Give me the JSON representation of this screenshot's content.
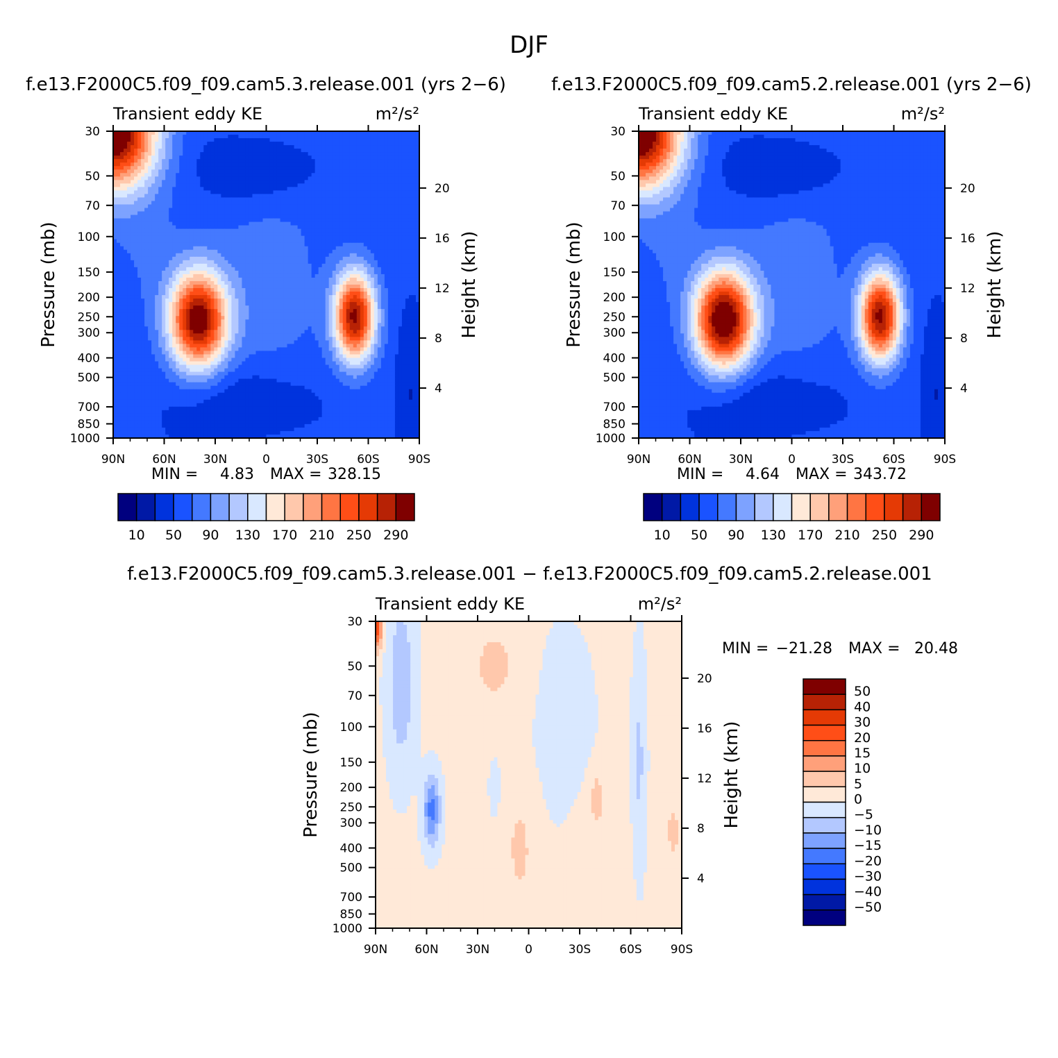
{
  "figure": {
    "title": "DJF"
  },
  "colors": {
    "abs": [
      "#00007f",
      "#0019a6",
      "#0033dd",
      "#1a53ff",
      "#4479ff",
      "#7da2ff",
      "#b3c8ff",
      "#d9e8ff",
      "#ffe9d8",
      "#ffc8ac",
      "#ffa07a",
      "#ff7543",
      "#ff4e17",
      "#e53a05",
      "#b72205",
      "#7f0000"
    ],
    "diff": [
      "#00007f",
      "#0019a6",
      "#0033dd",
      "#1a53ff",
      "#4479ff",
      "#7da2ff",
      "#b3c8ff",
      "#d9e8ff",
      "#ffe9d8",
      "#ffc8ac",
      "#ffa07a",
      "#ff7543",
      "#ff4e17",
      "#e53a05",
      "#b72205",
      "#7f0000"
    ]
  },
  "chart_data": [
    {
      "type": "heatmap",
      "title": "f.e13.F2000C5.f09_f09.cam5.3.release.001  (yrs 2-6)",
      "left_label": "Transient eddy KE",
      "right_label": "m²/s²",
      "ylabel": "Pressure (mb)",
      "y2label": "Height (km)",
      "x_ticks": [
        "90N",
        "60N",
        "30N",
        "0",
        "30S",
        "60S",
        "90S"
      ],
      "x": [
        90,
        60,
        30,
        0,
        -30,
        -60,
        -90
      ],
      "y_ticks": [
        30,
        50,
        70,
        100,
        150,
        200,
        250,
        300,
        400,
        500,
        700,
        850,
        1000
      ],
      "y2_ticks": [
        20,
        16,
        12,
        8,
        4
      ],
      "ylim": [
        1000,
        30
      ],
      "stats": {
        "min_label": "MIN =",
        "min": "4.83",
        "max_label": "MAX =",
        "max": "328.15"
      },
      "contour_levels": [
        10,
        30,
        50,
        70,
        90,
        110,
        130,
        150,
        170,
        190,
        210,
        230,
        250,
        270,
        290
      ],
      "colorbar_labels": [
        "10",
        "50",
        "90",
        "130",
        "170",
        "210",
        "250",
        "290"
      ],
      "features": [
        {
          "name": "nh-jet-core",
          "lat": 40,
          "p": 250,
          "value": 328
        },
        {
          "name": "sh-jet-core",
          "lat": -52,
          "p": 250,
          "value": 300
        },
        {
          "name": "nh-polar-stratosphere",
          "lat": 85,
          "p": 30,
          "value": 300
        }
      ]
    },
    {
      "type": "heatmap",
      "title": "f.e13.F2000C5.f09_f09.cam5.2.release.001  (yrs 2-6)",
      "left_label": "Transient eddy KE",
      "right_label": "m²/s²",
      "ylabel": "Pressure (mb)",
      "y2label": "Height (km)",
      "x_ticks": [
        "90N",
        "60N",
        "30N",
        "0",
        "30S",
        "60S",
        "90S"
      ],
      "x": [
        90,
        60,
        30,
        0,
        -30,
        -60,
        -90
      ],
      "y_ticks": [
        30,
        50,
        70,
        100,
        150,
        200,
        250,
        300,
        400,
        500,
        700,
        850,
        1000
      ],
      "y2_ticks": [
        20,
        16,
        12,
        8,
        4
      ],
      "ylim": [
        1000,
        30
      ],
      "stats": {
        "min_label": "MIN =",
        "min": "4.64",
        "max_label": "MAX =",
        "max": "343.72"
      },
      "contour_levels": [
        10,
        30,
        50,
        70,
        90,
        110,
        130,
        150,
        170,
        190,
        210,
        230,
        250,
        270,
        290
      ],
      "colorbar_labels": [
        "10",
        "50",
        "90",
        "130",
        "170",
        "210",
        "250",
        "290"
      ],
      "features": [
        {
          "name": "nh-jet-core",
          "lat": 42,
          "p": 250,
          "value": 343
        },
        {
          "name": "sh-jet-core",
          "lat": -52,
          "p": 250,
          "value": 300
        },
        {
          "name": "nh-polar-stratosphere",
          "lat": 85,
          "p": 30,
          "value": 320
        }
      ]
    },
    {
      "type": "heatmap",
      "title": "f.e13.F2000C5.f09_f09.cam5.3.release.001 - f.e13.F2000C5.f09_f09.cam5.2.release.001",
      "left_label": "Transient eddy KE",
      "right_label": "m²/s²",
      "ylabel": "Pressure (mb)",
      "y2label": "Height (km)",
      "x_ticks": [
        "90N",
        "60N",
        "30N",
        "0",
        "30S",
        "60S",
        "90S"
      ],
      "x": [
        90,
        60,
        30,
        0,
        -30,
        -60,
        -90
      ],
      "y_ticks": [
        30,
        50,
        70,
        100,
        150,
        200,
        250,
        300,
        400,
        500,
        700,
        850,
        1000
      ],
      "y2_ticks": [
        20,
        16,
        12,
        8,
        4
      ],
      "ylim": [
        1000,
        30
      ],
      "stats": {
        "min_label": "MIN =",
        "min": "-21.28",
        "max_label": "MAX =",
        "max": "20.48"
      },
      "contour_levels": [
        -50,
        -40,
        -30,
        -20,
        -15,
        -10,
        -5,
        0,
        5,
        10,
        15,
        20,
        30,
        40,
        50
      ],
      "colorbar_labels": [
        "50",
        "40",
        "30",
        "20",
        "15",
        "10",
        "5",
        "0",
        "-5",
        "-10",
        "-15",
        "-20",
        "-30",
        "-40",
        "-50"
      ],
      "features": [
        {
          "name": "nh-midlat-negative",
          "lat": 58,
          "p": 250,
          "value": -21.28
        },
        {
          "name": "polar-strat-positive",
          "lat": 88,
          "p": 35,
          "value": 20.48
        }
      ]
    }
  ]
}
